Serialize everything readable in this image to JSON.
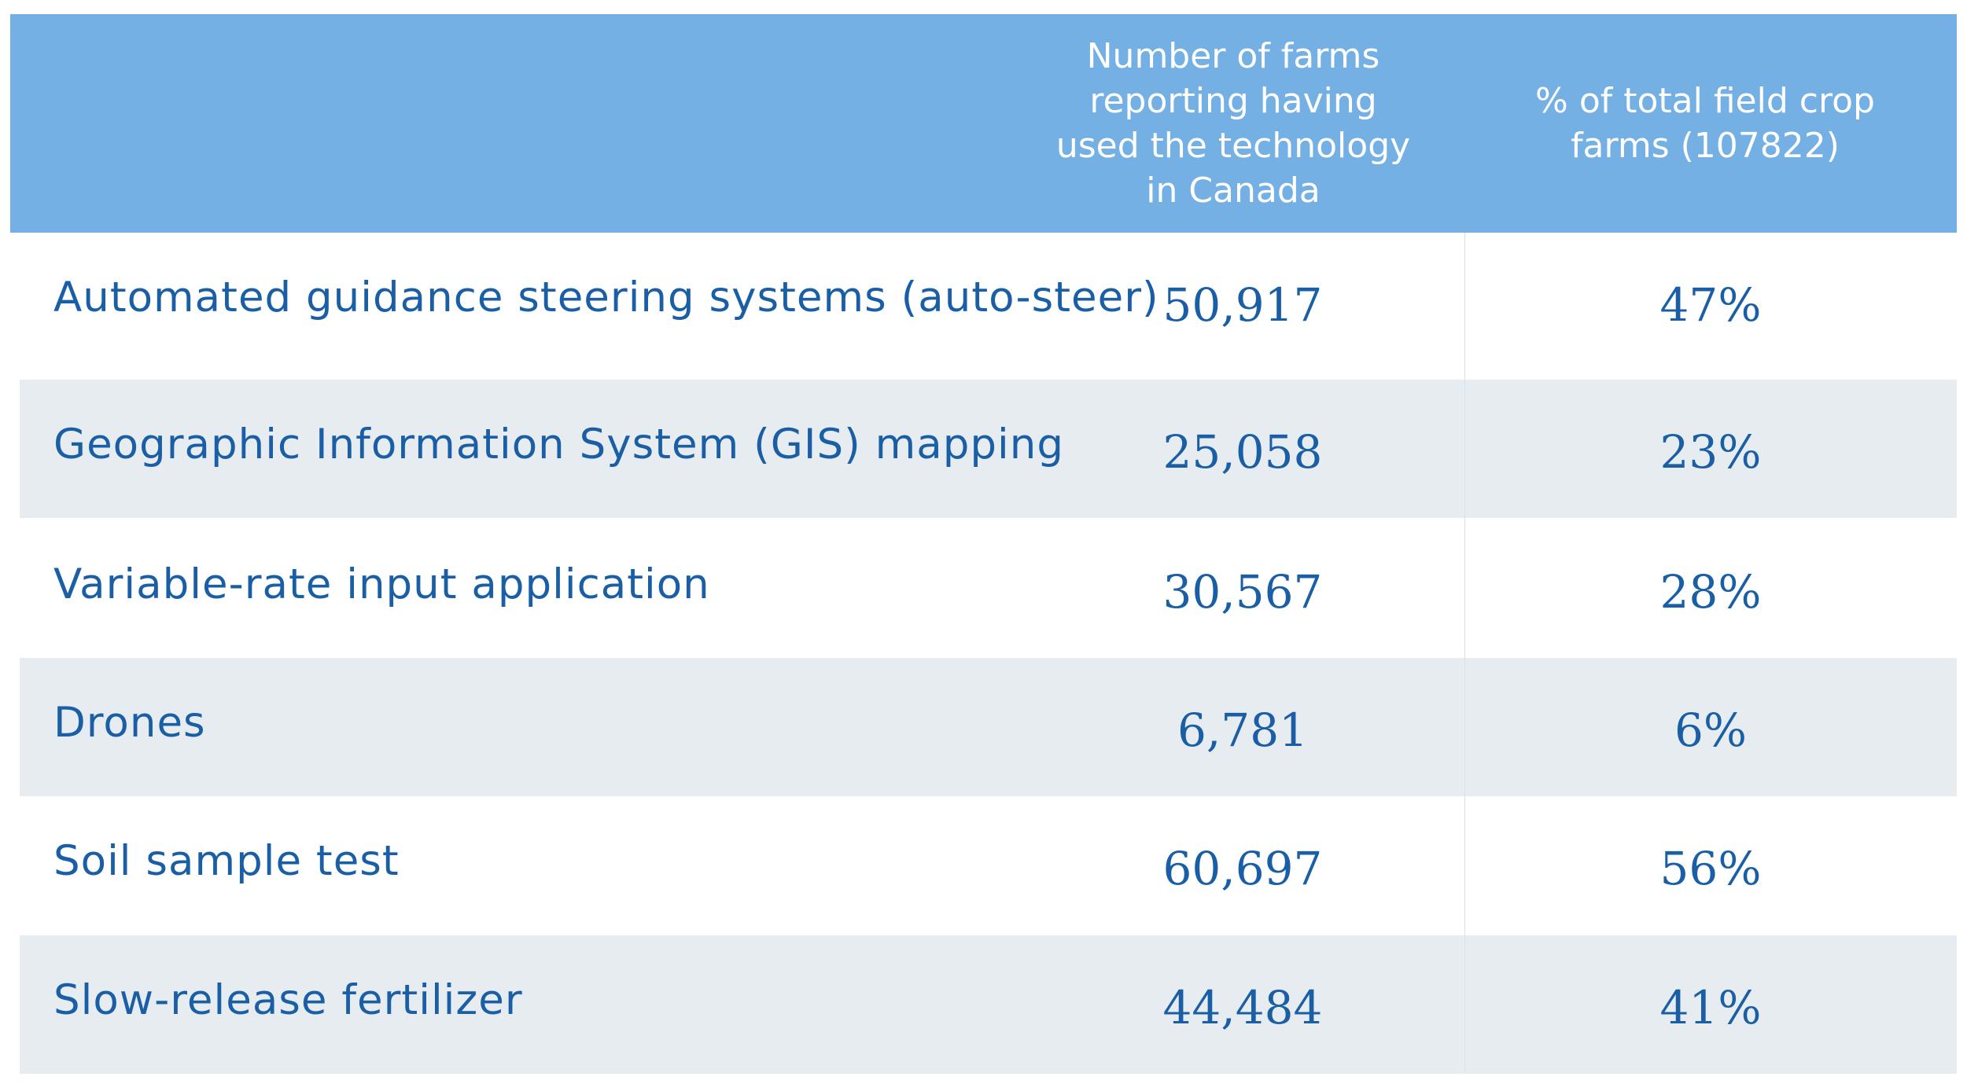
{
  "chart_data": {
    "type": "table",
    "columns": [
      "",
      "Number of farms\nreporting having\nused the technology\nin Canada",
      "% of total field crop\nfarms (107822)"
    ],
    "rows": [
      {
        "technology": "Automated guidance steering systems (auto-steer)",
        "farms": "50,917",
        "percent": "47%"
      },
      {
        "technology": "Geographic Information System (GIS) mapping",
        "farms": "25,058",
        "percent": "23%"
      },
      {
        "technology": "Variable-rate input application",
        "farms": "30,567",
        "percent": "28%"
      },
      {
        "technology": "Drones",
        "farms": "6,781",
        "percent": "6%"
      },
      {
        "technology": "Soil sample test",
        "farms": "60,697",
        "percent": "56%"
      },
      {
        "technology": "Slow-release fertilizer",
        "farms": "44,484",
        "percent": "41%"
      }
    ],
    "colors": {
      "header_background": "#74b0e3",
      "header_text": "#ffffff",
      "body_text": "#1a5fa6",
      "shaded_row": "#e6ecf0"
    }
  }
}
